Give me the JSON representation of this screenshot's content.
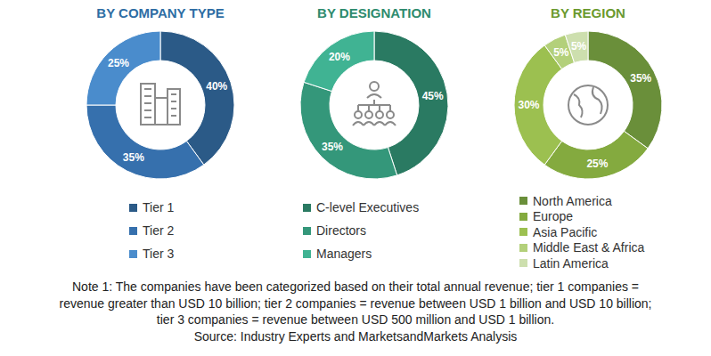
{
  "chart_data": [
    {
      "type": "pie",
      "title": "BY COMPANY TYPE",
      "categories": [
        "Tier 1",
        "Tier 2",
        "Tier 3"
      ],
      "values": [
        40,
        35,
        25
      ],
      "value_labels": [
        "40%",
        "35%",
        "25%"
      ],
      "colors": [
        "#2b5a87",
        "#3670ad",
        "#4a8ccc"
      ],
      "data_labels": true
    },
    {
      "type": "pie",
      "title": "BY DESIGNATION",
      "categories": [
        "C-level Executives",
        "Directors",
        "Managers"
      ],
      "values": [
        45,
        35,
        20
      ],
      "value_labels": [
        "45%",
        "35%",
        "20%"
      ],
      "colors": [
        "#2a7a62",
        "#34977a",
        "#40b393"
      ],
      "data_labels": true
    },
    {
      "type": "pie",
      "title": "BY REGION",
      "categories": [
        "North America",
        "Europe",
        "Asia Pacific",
        "Middle East & Africa",
        "Latin America"
      ],
      "values": [
        35,
        25,
        30,
        5,
        5
      ],
      "value_labels": [
        "35%",
        "25%",
        "30%",
        "5%",
        "5%"
      ],
      "colors": [
        "#6a8f3a",
        "#84aa3f",
        "#9cc050",
        "#b3d07a",
        "#cddfae"
      ],
      "data_labels": true
    }
  ],
  "note": [
    "Note 1: The companies have been categorized based on their total annual revenue; tier 1 companies =",
    "revenue greater than USD 10 billion; tier 2 companies = revenue between USD 1 billion and USD 10 billion;",
    "tier 3 companies = revenue between USD 500 million and USD 1 billion."
  ],
  "source": "Source: Industry Experts and MarketsandMarkets Analysis"
}
